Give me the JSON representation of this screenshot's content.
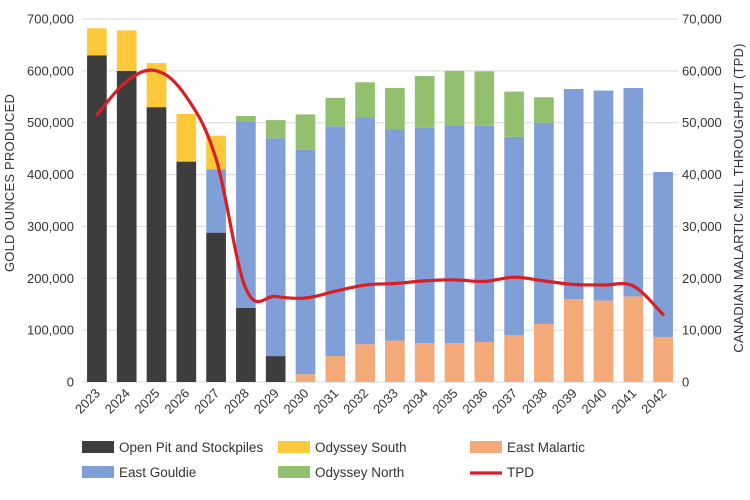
{
  "chart_data": {
    "type": "bar",
    "stacked": true,
    "categories": [
      "2023",
      "2024",
      "2025",
      "2026",
      "2027",
      "2028",
      "2029",
      "2030",
      "2031",
      "2032",
      "2033",
      "2034",
      "2035",
      "2036",
      "2037",
      "2038",
      "2039",
      "2040",
      "2041",
      "2042"
    ],
    "series": [
      {
        "name": "Open Pit and Stockpiles",
        "color": "#3d3d3d",
        "values": [
          630000,
          600000,
          530000,
          425000,
          288000,
          143000,
          50000,
          0,
          0,
          0,
          0,
          0,
          0,
          0,
          0,
          0,
          0,
          0,
          0,
          0
        ]
      },
      {
        "name": "East Malartic",
        "color": "#f4a978",
        "values": [
          0,
          0,
          0,
          0,
          0,
          0,
          0,
          15000,
          50000,
          73000,
          80000,
          75000,
          75000,
          77000,
          90000,
          112000,
          160000,
          157000,
          165000,
          87000
        ]
      },
      {
        "name": "East Gouldie",
        "color": "#7f9fd6",
        "values": [
          0,
          0,
          0,
          0,
          122000,
          360000,
          420000,
          433000,
          443000,
          437000,
          407000,
          415000,
          420000,
          417000,
          383000,
          388000,
          405000,
          405000,
          402000,
          318000
        ]
      },
      {
        "name": "Odyssey South",
        "color": "#fdc93b",
        "values": [
          52000,
          78000,
          85000,
          92000,
          65000,
          0,
          0,
          0,
          0,
          0,
          0,
          0,
          0,
          0,
          0,
          0,
          0,
          0,
          0,
          0
        ]
      },
      {
        "name": "Odyssey North",
        "color": "#92c06e",
        "values": [
          0,
          0,
          0,
          0,
          0,
          10000,
          35000,
          68000,
          55000,
          68000,
          80000,
          100000,
          105000,
          105000,
          87000,
          49000,
          0,
          0,
          0,
          0
        ]
      }
    ],
    "line": {
      "name": "TPD",
      "color": "#d81f26",
      "axis": "right",
      "values": [
        51500,
        58000,
        60000,
        55000,
        43000,
        18000,
        16500,
        16200,
        17500,
        18700,
        19000,
        19500,
        19700,
        19400,
        20200,
        19500,
        18800,
        18700,
        18500,
        13000
      ]
    },
    "ylabel": "GOLD OUNCES PRODUCED",
    "y2label": "CANADIAN MALARTIC MILL  THROUGHPUT (TPD)",
    "ylim": [
      0,
      700000
    ],
    "y2lim": [
      0,
      70000
    ],
    "yticks": [
      "0",
      "100,000",
      "200,000",
      "300,000",
      "400,000",
      "500,000",
      "600,000",
      "700,000"
    ],
    "y2ticks": [
      "0",
      "10,000",
      "20,000",
      "30,000",
      "40,000",
      "50,000",
      "60,000",
      "70,000"
    ],
    "legend": [
      {
        "label": "Open Pit and Stockpiles",
        "color": "#3d3d3d",
        "kind": "box"
      },
      {
        "label": "Odyssey South",
        "color": "#fdc93b",
        "kind": "box"
      },
      {
        "label": "East Malartic",
        "color": "#f4a978",
        "kind": "box"
      },
      {
        "label": "East Gouldie",
        "color": "#7f9fd6",
        "kind": "box"
      },
      {
        "label": "Odyssey North",
        "color": "#92c06e",
        "kind": "box"
      },
      {
        "label": "TPD",
        "color": "#d81f26",
        "kind": "line"
      }
    ],
    "legend_position": "bottom",
    "grid": true
  }
}
